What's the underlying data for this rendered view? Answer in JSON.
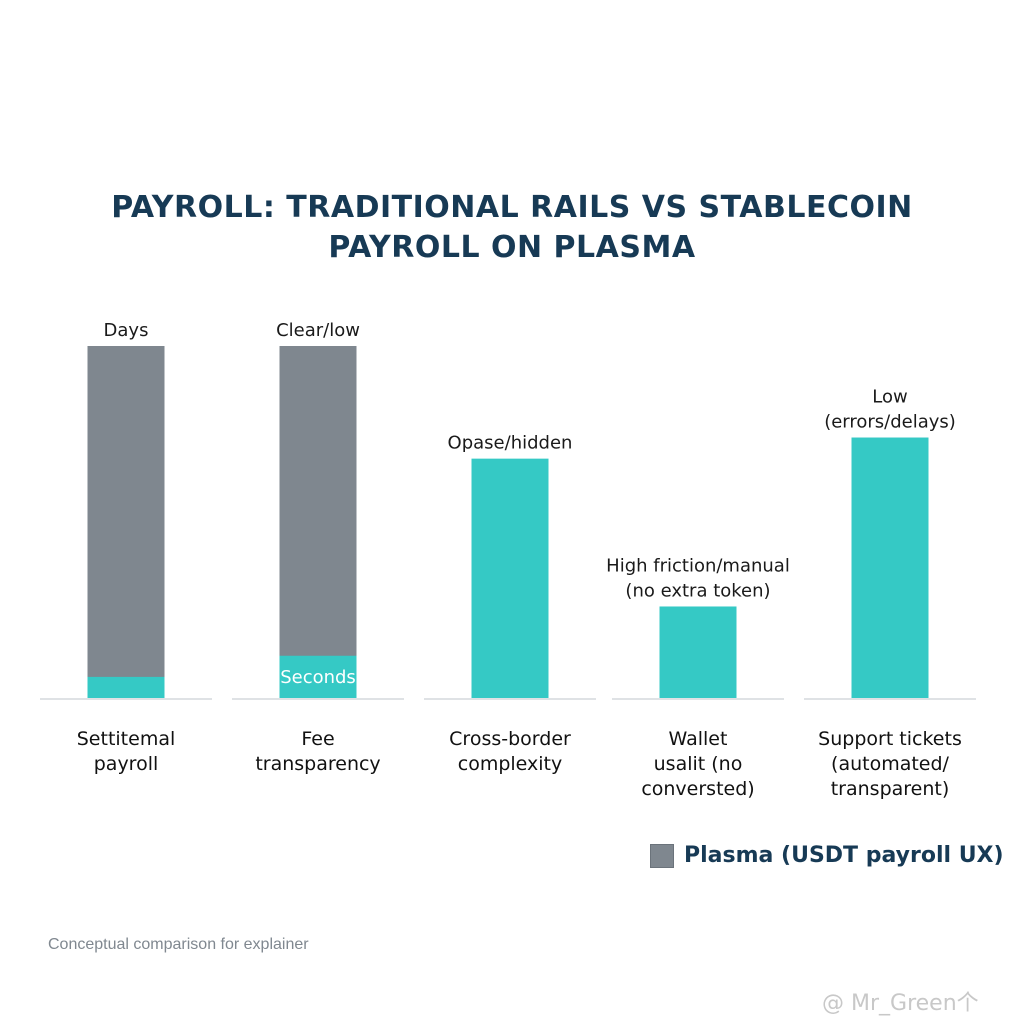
{
  "chart_data": {
    "type": "bar",
    "title": "PAYROLL: TRADITIONAL RAILS VS STABLECOIN PAYROLL ON PLASMA",
    "categories": [
      [
        "Settitemal",
        "payroll"
      ],
      [
        "Fee",
        "transparency"
      ],
      [
        "Cross-border",
        "complexity"
      ],
      [
        "Wallet",
        "usalit (no",
        "conversted)"
      ],
      [
        "Support tickets",
        "(automated/",
        "transparent)"
      ]
    ],
    "series": [
      {
        "values": [
          100,
          100,
          0,
          0,
          0
        ],
        "color": "#7f878f"
      },
      {
        "values": [
          6,
          12,
          68,
          26,
          74
        ],
        "color": "#35c9c5"
      }
    ],
    "bar_labels": [
      [
        "Days"
      ],
      [
        "Clear/low"
      ],
      [
        "Opase/hidden"
      ],
      [
        "High friction/manual",
        "(no extra token)"
      ],
      [
        "Low",
        "(errors/delays)"
      ]
    ],
    "inner_labels": [
      "",
      "Seconds",
      "",
      "",
      ""
    ],
    "ylim": [
      0,
      100
    ],
    "legend": {
      "label": "Plasma (USDT payroll UX)",
      "placement": "bottom-right",
      "swatch_color": "#7f878f"
    }
  },
  "footnote": "Conceptual comparison for explainer",
  "watermark": "@ Mr_Green个"
}
